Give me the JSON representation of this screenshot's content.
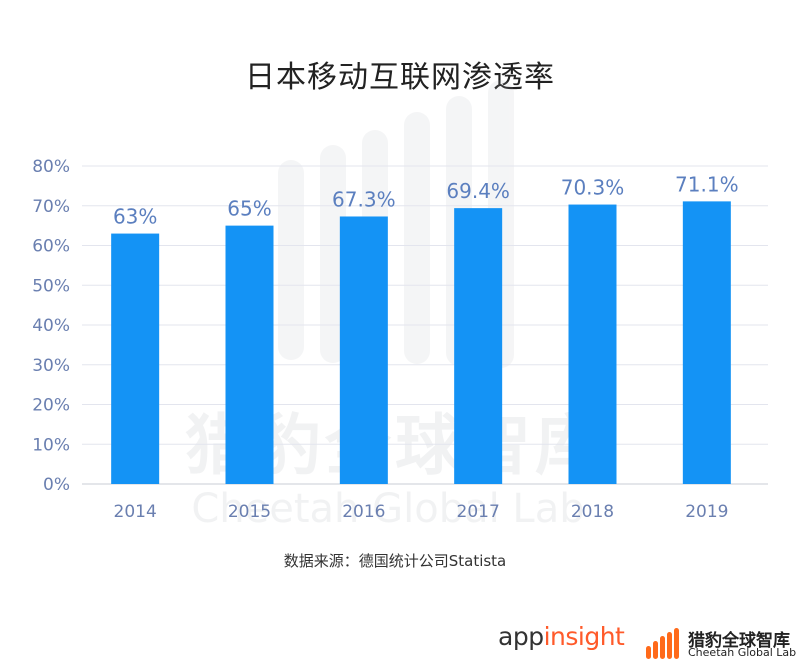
{
  "chart_data": {
    "type": "bar",
    "title": "日本移动互联网渗透率",
    "categories": [
      "2014",
      "2015",
      "2016",
      "2017",
      "2018",
      "2019"
    ],
    "values": [
      63,
      65,
      67.3,
      69.4,
      70.3,
      71.1
    ],
    "value_labels": [
      "63%",
      "65%",
      "67.3%",
      "69.4%",
      "70.3%",
      "71.1%"
    ],
    "yticks": [
      "0%",
      "10%",
      "20%",
      "30%",
      "40%",
      "50%",
      "60%",
      "70%",
      "80%"
    ],
    "ylim": [
      0,
      80
    ],
    "xlabel": "",
    "ylabel": "",
    "grid": true,
    "bar_color": "#1493f5",
    "label_color": "#5b7fbf"
  },
  "source": "数据来源：德国统计公司Statista",
  "watermark": {
    "cn": "猎豹全球智库",
    "en": "Cheetah Global Lab"
  },
  "branding": {
    "appinsight_prefix": "app",
    "appinsight_suffix": "insight",
    "accent_color": "#ff5a2a",
    "cheetah_cn": "猎豹全球智库",
    "cheetah_en": "Cheetah Global Lab"
  }
}
